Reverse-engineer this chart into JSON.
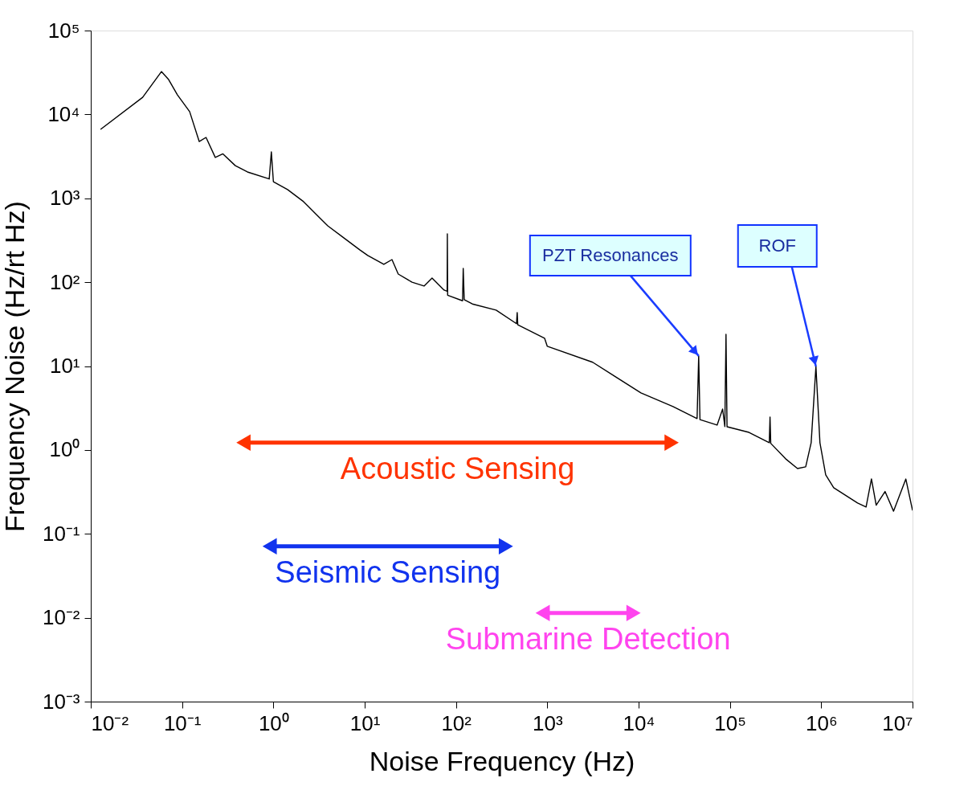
{
  "chart_data": {
    "type": "line",
    "xlabel": "Noise Frequency (Hz)",
    "ylabel": "Frequency Noise (Hz/rt Hz)",
    "log": "xy",
    "grid": false,
    "legend": false,
    "xlim": [
      0.01,
      10000000
    ],
    "ylim": [
      0.001,
      100000
    ],
    "xticks": [
      {
        "value": 0.01,
        "label": "10⁻²"
      },
      {
        "value": 0.1,
        "label": "10⁻¹"
      },
      {
        "value": 1,
        "label": "10⁰"
      },
      {
        "value": 10,
        "label": "10¹"
      },
      {
        "value": 100,
        "label": "10²"
      },
      {
        "value": 1000,
        "label": "10³"
      },
      {
        "value": 10000,
        "label": "10⁴"
      },
      {
        "value": 100000,
        "label": "10⁵"
      },
      {
        "value": 1000000,
        "label": "10⁶"
      },
      {
        "value": 10000000,
        "label": "10⁷"
      }
    ],
    "yticks": [
      {
        "value": 0.001,
        "label": "10⁻³"
      },
      {
        "value": 0.01,
        "label": "10⁻²"
      },
      {
        "value": 0.1,
        "label": "10⁻¹"
      },
      {
        "value": 1,
        "label": "10⁰"
      },
      {
        "value": 10,
        "label": "10¹"
      },
      {
        "value": 100,
        "label": "10²"
      },
      {
        "value": 1000,
        "label": "10³"
      },
      {
        "value": 10000,
        "label": "10⁴"
      },
      {
        "value": 100000,
        "label": "10⁵"
      }
    ],
    "series": [
      {
        "type": "line",
        "color": "#000000",
        "x": [
          0.0128,
          0.037,
          0.0594,
          0.0713,
          0.089,
          0.121,
          0.154,
          0.183,
          0.231,
          0.28,
          0.383,
          0.52,
          0.9,
          0.95,
          1.0,
          1.43,
          2.14,
          2.9,
          3.94,
          5.89,
          8.83,
          10.8,
          16.2,
          19.9,
          23.3,
          33,
          44.7,
          54.7,
          74,
          80,
          80.4,
          81,
          118,
          120,
          123,
          151,
          275,
          460,
          468,
          475,
          933,
          1000,
          3140,
          10600,
          23800,
          43700,
          45500,
          47000,
          72400,
          83200,
          88000,
          90600,
          93000,
          162000,
          270000,
          275000,
          280000,
          407000,
          550000,
          676000,
          776000,
          875000,
          968000,
          1120000,
          1370000,
          2500000,
          3100000,
          3550000,
          4000000,
          5000000,
          6200000,
          8450000,
          10000000
        ],
        "values": [
          6640,
          16000,
          32400,
          26000,
          17100,
          10800,
          4760,
          5320,
          3070,
          3390,
          2450,
          2060,
          1700,
          3580,
          1580,
          1270,
          912,
          655,
          470,
          338,
          243,
          208,
          163,
          186,
          125,
          100,
          90,
          112,
          80.5,
          78,
          377,
          70,
          60,
          146,
          62,
          55,
          46.5,
          32,
          43.5,
          31,
          21.5,
          17.2,
          11.1,
          4.79,
          3.29,
          2.37,
          13.2,
          2.3,
          1.98,
          3.07,
          1.9,
          23.9,
          1.89,
          1.62,
          1.22,
          2.47,
          1.2,
          0.785,
          0.6,
          0.63,
          1.22,
          9.9,
          1.22,
          0.505,
          0.355,
          0.233,
          0.209,
          0.452,
          0.22,
          0.32,
          0.186,
          0.45,
          0.19
        ]
      },
      {
        "type": "line",
        "name": "Acoustic Sensing",
        "color": "#ff3300",
        "marker": "triangle",
        "x": [
          0.47,
          23000
        ],
        "values": [
          1.22,
          1.22
        ]
      },
      {
        "type": "line",
        "name": "Seismic Sensing",
        "color": "#1133ee",
        "marker": "triangle",
        "x": [
          0.91,
          352
        ],
        "values": [
          0.071,
          0.071
        ]
      },
      {
        "type": "line",
        "name": "Submarine Detection",
        "color": "#ff44ee",
        "marker": "triangle",
        "x": [
          890,
          8800
        ],
        "values": [
          0.0114,
          0.0114
        ]
      }
    ],
    "annotations": [
      {
        "text": "PZT Resonances",
        "x": 45500,
        "y": 13.2
      },
      {
        "text": "ROF",
        "x": 875000,
        "y": 9.9
      }
    ]
  }
}
